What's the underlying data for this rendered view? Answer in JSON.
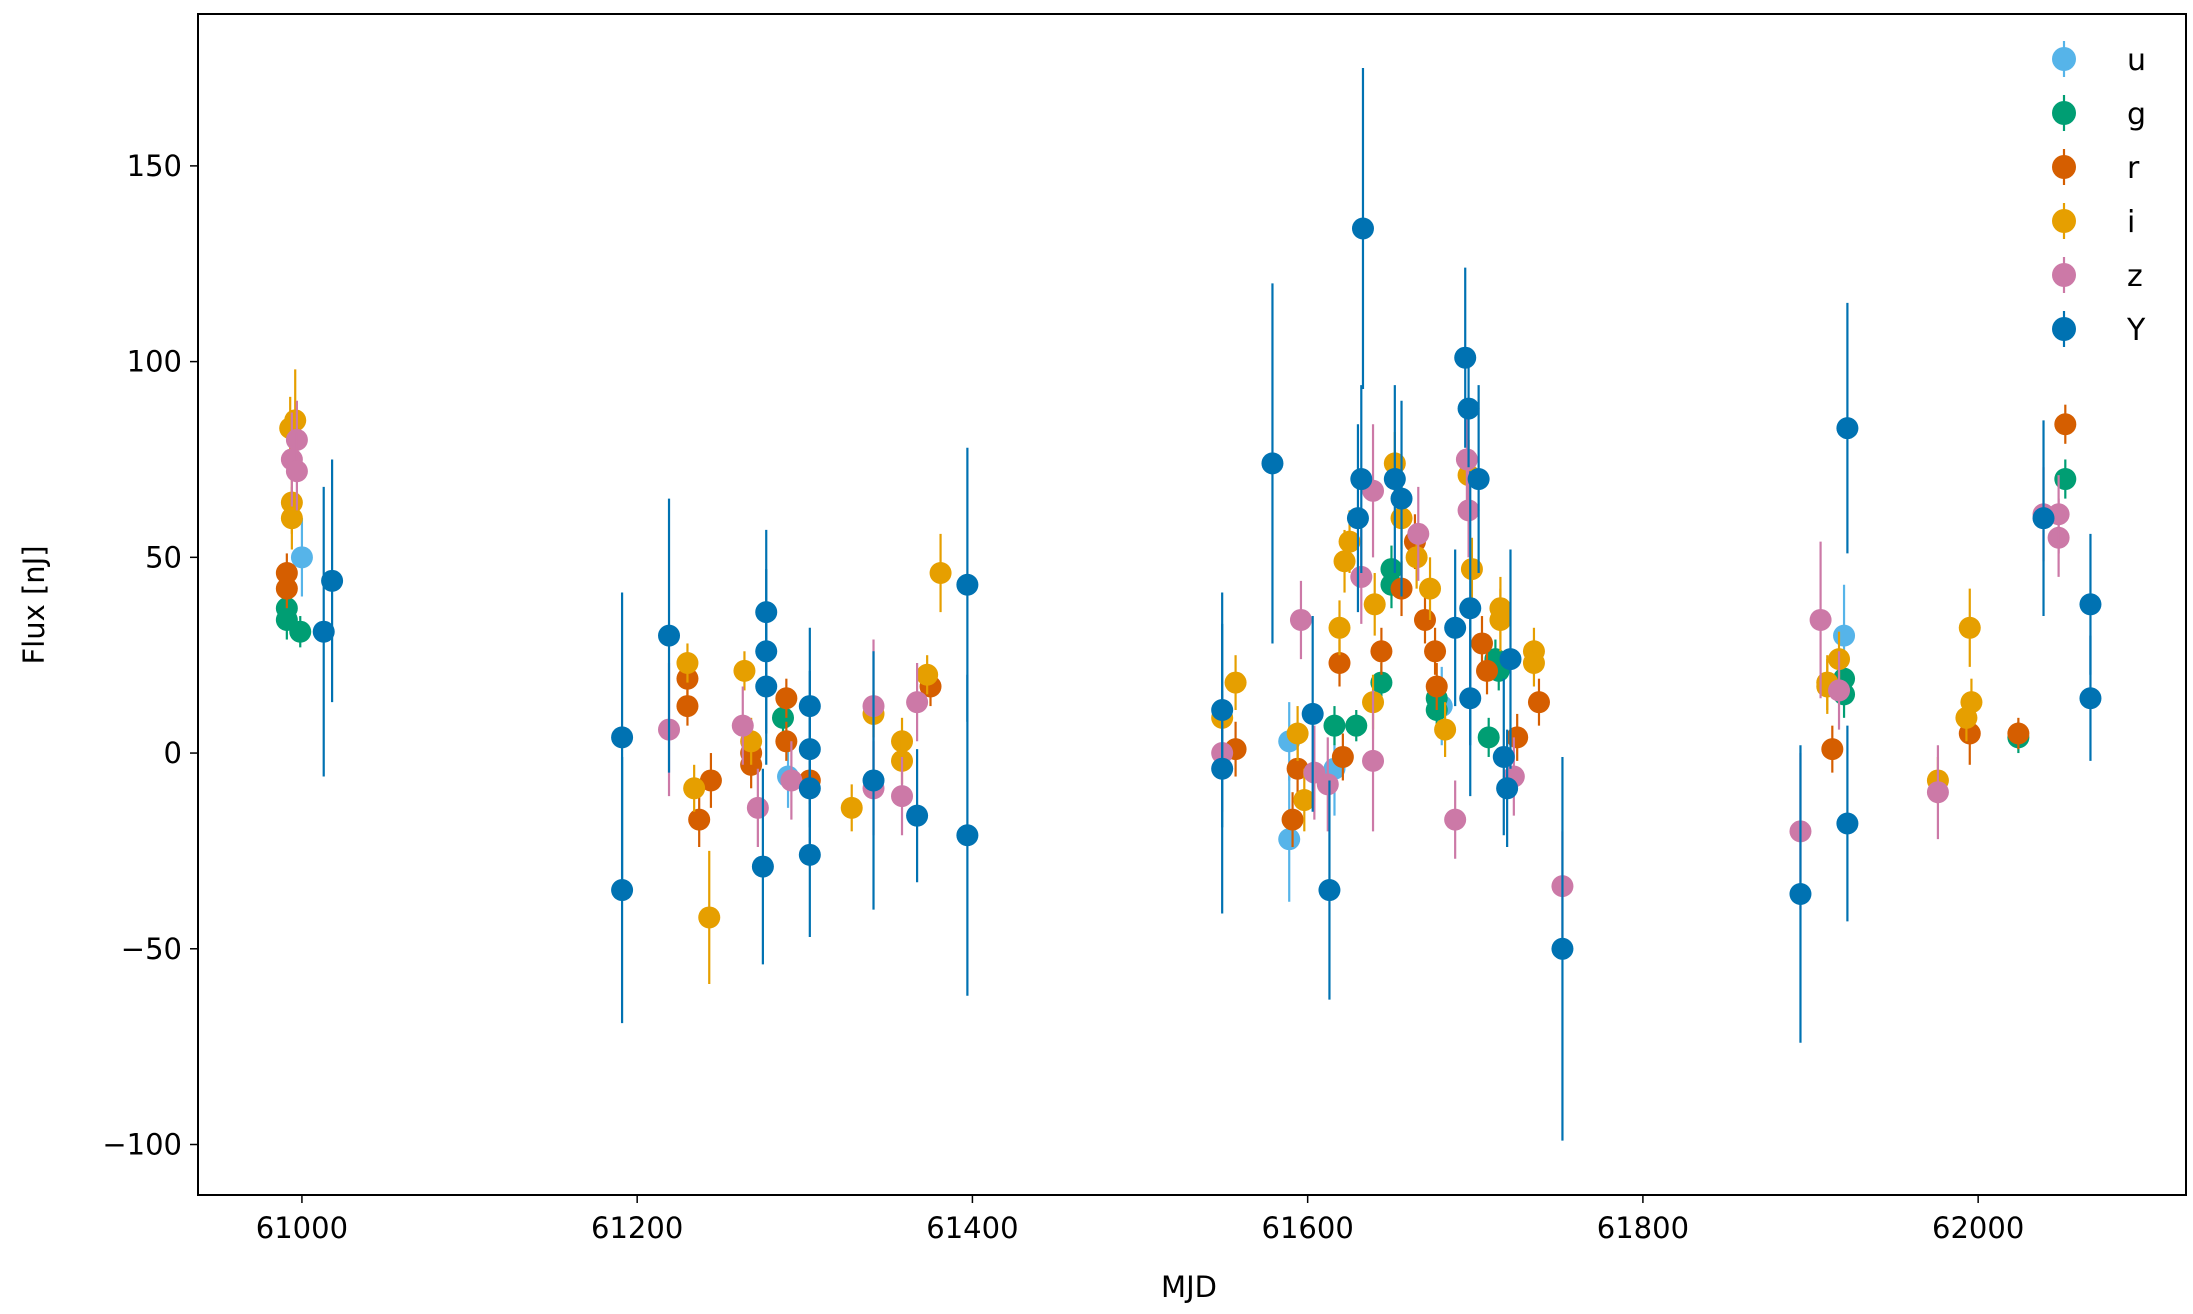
{
  "chart_data": {
    "type": "scatter",
    "title": "",
    "xlabel": "MJD",
    "ylabel": "Flux [nJ]",
    "xlim": [
      60938,
      62124
    ],
    "ylim": [
      -112.9,
      188.8
    ],
    "xticks": [
      61000,
      61200,
      61400,
      61600,
      61800,
      62000
    ],
    "xtick_labels": [
      "61000",
      "61200",
      "61400",
      "61600",
      "61800",
      "62000"
    ],
    "yticks": [
      150,
      100,
      50,
      0,
      -50,
      -100
    ],
    "ytick_labels": [
      "150",
      "100",
      "50",
      "0",
      "−50",
      "−100"
    ],
    "grid": false,
    "legend_placement": "top-right",
    "series": [
      {
        "name": "u",
        "color": "#56B4E9",
        "points": [
          [
            61000,
            50,
            10
          ],
          [
            61589,
            -22,
            16
          ],
          [
            61589,
            3,
            10
          ],
          [
            61616,
            -4,
            12
          ],
          [
            61920,
            30,
            13
          ],
          [
            61290,
            -6,
            8
          ],
          [
            61680,
            12,
            10
          ]
        ]
      },
      {
        "name": "g",
        "color": "#009E73",
        "points": [
          [
            60991,
            37,
            5
          ],
          [
            60991,
            34,
            5
          ],
          [
            60999,
            31,
            4
          ],
          [
            61287,
            9,
            5
          ],
          [
            61616,
            7,
            5
          ],
          [
            61629,
            7,
            4
          ],
          [
            61644,
            18,
            5
          ],
          [
            61650,
            47,
            6
          ],
          [
            61650,
            43,
            6
          ],
          [
            61677,
            14,
            5
          ],
          [
            61677,
            11,
            5
          ],
          [
            61708,
            4,
            5
          ],
          [
            61712,
            24,
            5
          ],
          [
            61714,
            21,
            5
          ],
          [
            61920,
            19,
            6
          ],
          [
            61920,
            15,
            6
          ],
          [
            62024,
            4,
            4
          ],
          [
            62052,
            70,
            5
          ]
        ]
      },
      {
        "name": "r",
        "color": "#D55E00",
        "points": [
          [
            60991,
            46,
            5
          ],
          [
            60991,
            42,
            5
          ],
          [
            61230,
            19,
            5
          ],
          [
            61230,
            12,
            5
          ],
          [
            61237,
            -17,
            7
          ],
          [
            61244,
            -7,
            7
          ],
          [
            61268,
            0,
            6
          ],
          [
            61268,
            -3,
            6
          ],
          [
            61289,
            14,
            5
          ],
          [
            61289,
            3,
            5
          ],
          [
            61303,
            -7,
            6
          ],
          [
            61375,
            17,
            5
          ],
          [
            61591,
            -17,
            7
          ],
          [
            61594,
            -4,
            7
          ],
          [
            61619,
            23,
            6
          ],
          [
            61621,
            -1,
            6
          ],
          [
            61644,
            26,
            6
          ],
          [
            61656,
            42,
            7
          ],
          [
            61664,
            54,
            7
          ],
          [
            61670,
            34,
            6
          ],
          [
            61676,
            26,
            6
          ],
          [
            61677,
            17,
            6
          ],
          [
            61704,
            28,
            7
          ],
          [
            61707,
            21,
            6
          ],
          [
            61725,
            4,
            6
          ],
          [
            61738,
            13,
            6
          ],
          [
            61557,
            1,
            7
          ],
          [
            61913,
            1,
            6
          ],
          [
            61995,
            5,
            8
          ],
          [
            62024,
            5,
            4
          ],
          [
            62052,
            84,
            5
          ]
        ]
      },
      {
        "name": "i",
        "color": "#E69F00",
        "points": [
          [
            60996,
            85,
            13
          ],
          [
            60993,
            83,
            8
          ],
          [
            60994,
            64,
            8
          ],
          [
            60994,
            60,
            8
          ],
          [
            61230,
            23,
            5
          ],
          [
            61234,
            -9,
            6
          ],
          [
            61243,
            -42,
            17
          ],
          [
            61264,
            21,
            5
          ],
          [
            61268,
            3,
            6
          ],
          [
            61328,
            -14,
            6
          ],
          [
            61341,
            10,
            6
          ],
          [
            61358,
            3,
            6
          ],
          [
            61358,
            -2,
            6
          ],
          [
            61373,
            20,
            5
          ],
          [
            61381,
            46,
            10
          ],
          [
            61549,
            9,
            7
          ],
          [
            61557,
            18,
            7
          ],
          [
            61594,
            5,
            7
          ],
          [
            61598,
            -12,
            8
          ],
          [
            61619,
            32,
            7
          ],
          [
            61622,
            49,
            8
          ],
          [
            61625,
            54,
            8
          ],
          [
            61640,
            38,
            8
          ],
          [
            61639,
            13,
            7
          ],
          [
            61652,
            74,
            8
          ],
          [
            61656,
            60,
            8
          ],
          [
            61665,
            50,
            8
          ],
          [
            61673,
            42,
            8
          ],
          [
            61682,
            6,
            7
          ],
          [
            61696,
            71,
            9
          ],
          [
            61698,
            47,
            8
          ],
          [
            61715,
            37,
            8
          ],
          [
            61715,
            34,
            8
          ],
          [
            61735,
            26,
            6
          ],
          [
            61735,
            23,
            6
          ],
          [
            61910,
            18,
            7
          ],
          [
            61910,
            17,
            7
          ],
          [
            61917,
            24,
            7
          ],
          [
            61976,
            -7,
            6
          ],
          [
            61995,
            32,
            10
          ],
          [
            61996,
            13,
            6
          ],
          [
            61993,
            9,
            6
          ]
        ]
      },
      {
        "name": "z",
        "color": "#CC79A7",
        "points": [
          [
            60994,
            75,
            12
          ],
          [
            60997,
            80,
            10
          ],
          [
            60997,
            72,
            10
          ],
          [
            61219,
            6,
            17
          ],
          [
            61263,
            7,
            10
          ],
          [
            61272,
            -14,
            10
          ],
          [
            61292,
            -7,
            10
          ],
          [
            61341,
            12,
            17
          ],
          [
            61341,
            -9,
            12
          ],
          [
            61358,
            -11,
            10
          ],
          [
            61367,
            13,
            10
          ],
          [
            61549,
            0,
            15
          ],
          [
            61596,
            34,
            10
          ],
          [
            61604,
            -5,
            12
          ],
          [
            61612,
            -8,
            12
          ],
          [
            61639,
            -2,
            18
          ],
          [
            61639,
            67,
            17
          ],
          [
            61632,
            45,
            12
          ],
          [
            61666,
            56,
            12
          ],
          [
            61688,
            -17,
            10
          ],
          [
            61695,
            75,
            12
          ],
          [
            61696,
            62,
            12
          ],
          [
            61723,
            -6,
            10
          ],
          [
            61752,
            -34,
            14
          ],
          [
            61894,
            -20,
            20
          ],
          [
            61906,
            34,
            20
          ],
          [
            61917,
            16,
            10
          ],
          [
            61976,
            -10,
            12
          ],
          [
            62039,
            61,
            12
          ],
          [
            62048,
            55,
            10
          ],
          [
            62048,
            61,
            10
          ]
        ]
      },
      {
        "name": "Y",
        "color": "#0072B2",
        "points": [
          [
            61018,
            44,
            31
          ],
          [
            61013,
            31,
            37
          ],
          [
            61191,
            4,
            37
          ],
          [
            61191,
            -35,
            34
          ],
          [
            61219,
            30,
            35
          ],
          [
            61277,
            36,
            21
          ],
          [
            61277,
            26,
            21
          ],
          [
            61277,
            17,
            20
          ],
          [
            61275,
            -29,
            25
          ],
          [
            61303,
            12,
            20
          ],
          [
            61303,
            -26,
            21
          ],
          [
            61303,
            1,
            20
          ],
          [
            61303,
            -9,
            20
          ],
          [
            61341,
            -7,
            33
          ],
          [
            61367,
            -16,
            17
          ],
          [
            61397,
            43,
            35
          ],
          [
            61397,
            -21,
            41
          ],
          [
            61549,
            11,
            30
          ],
          [
            61549,
            -4,
            37
          ],
          [
            61579,
            74,
            46
          ],
          [
            61613,
            -35,
            28
          ],
          [
            61603,
            10,
            25
          ],
          [
            61633,
            134,
            41
          ],
          [
            61632,
            70,
            24
          ],
          [
            61630,
            60,
            24
          ],
          [
            61656,
            65,
            25
          ],
          [
            61652,
            70,
            24
          ],
          [
            61694,
            101,
            23
          ],
          [
            61696,
            88,
            15
          ],
          [
            61702,
            70,
            24
          ],
          [
            61697,
            37,
            35
          ],
          [
            61697,
            14,
            25
          ],
          [
            61688,
            32,
            20
          ],
          [
            61717,
            -1,
            20
          ],
          [
            61719,
            -9,
            15
          ],
          [
            61721,
            24,
            28
          ],
          [
            61752,
            -50,
            49
          ],
          [
            61894,
            -36,
            38
          ],
          [
            61922,
            83,
            32
          ],
          [
            61922,
            -18,
            25
          ],
          [
            62039,
            60,
            25
          ],
          [
            62067,
            38,
            18
          ],
          [
            62067,
            14,
            16
          ]
        ]
      }
    ]
  }
}
